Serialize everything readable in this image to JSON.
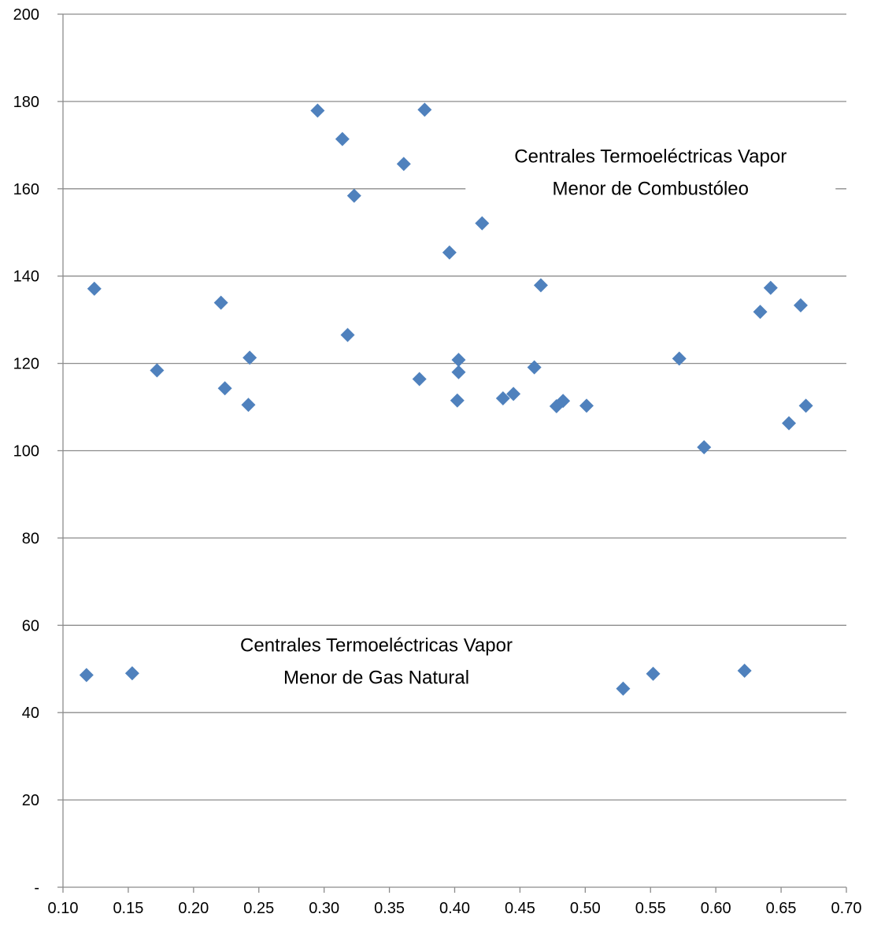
{
  "chart_data": {
    "type": "scatter",
    "title": "",
    "xlabel": "",
    "ylabel": "",
    "xlim": [
      0.1,
      0.7
    ],
    "ylim": [
      0,
      200
    ],
    "x_ticks": [
      0.1,
      0.15,
      0.2,
      0.25,
      0.3,
      0.35,
      0.4,
      0.45,
      0.5,
      0.55,
      0.6,
      0.65,
      0.7
    ],
    "x_tick_labels": [
      "0.10",
      "0.15",
      "0.20",
      "0.25",
      "0.30",
      "0.35",
      "0.40",
      "0.45",
      "0.50",
      "0.55",
      "0.60",
      "0.65",
      "0.70"
    ],
    "y_ticks": [
      0,
      20,
      40,
      60,
      80,
      100,
      120,
      140,
      160,
      180,
      200
    ],
    "y_tick_labels": [
      "-",
      "20",
      "40",
      "60",
      "80",
      "100",
      "120",
      "140",
      "160",
      "180",
      "200"
    ],
    "grid": "horizontal",
    "legend": "none",
    "marker": "diamond",
    "marker_color": "#4F81BD",
    "series": [
      {
        "points": [
          [
            0.118,
            48.6
          ],
          [
            0.153,
            49.0
          ],
          [
            0.529,
            45.5
          ],
          [
            0.552,
            48.9
          ],
          [
            0.622,
            49.6
          ],
          [
            0.124,
            137.1
          ],
          [
            0.172,
            118.4
          ],
          [
            0.221,
            133.9
          ],
          [
            0.224,
            114.3
          ],
          [
            0.242,
            110.5
          ],
          [
            0.243,
            121.3
          ],
          [
            0.295,
            177.9
          ],
          [
            0.314,
            171.4
          ],
          [
            0.318,
            126.5
          ],
          [
            0.323,
            158.4
          ],
          [
            0.361,
            165.7
          ],
          [
            0.373,
            116.4
          ],
          [
            0.377,
            178.1
          ],
          [
            0.396,
            145.4
          ],
          [
            0.402,
            111.5
          ],
          [
            0.403,
            118.0
          ],
          [
            0.403,
            120.8
          ],
          [
            0.421,
            152.1
          ],
          [
            0.437,
            112.0
          ],
          [
            0.445,
            113.0
          ],
          [
            0.461,
            119.1
          ],
          [
            0.466,
            137.9
          ],
          [
            0.478,
            110.2
          ],
          [
            0.483,
            111.4
          ],
          [
            0.501,
            110.3
          ],
          [
            0.572,
            121.1
          ],
          [
            0.591,
            100.8
          ],
          [
            0.634,
            131.8
          ],
          [
            0.642,
            137.3
          ],
          [
            0.656,
            106.3
          ],
          [
            0.665,
            133.3
          ],
          [
            0.669,
            110.3
          ]
        ]
      }
    ],
    "annotations": [
      {
        "lines": [
          "Centrales Termoeléctricas Vapor",
          "Menor de Combustóleo"
        ],
        "x": 0.55,
        "y": 170
      },
      {
        "lines": [
          "Centrales Termoeléctricas Vapor",
          "Menor de Gas Natural"
        ],
        "x": 0.34,
        "y": 58
      }
    ],
    "colors": {
      "grid": "#8C8C8C",
      "axis": "#8C8C8C",
      "text": "#000000"
    }
  }
}
